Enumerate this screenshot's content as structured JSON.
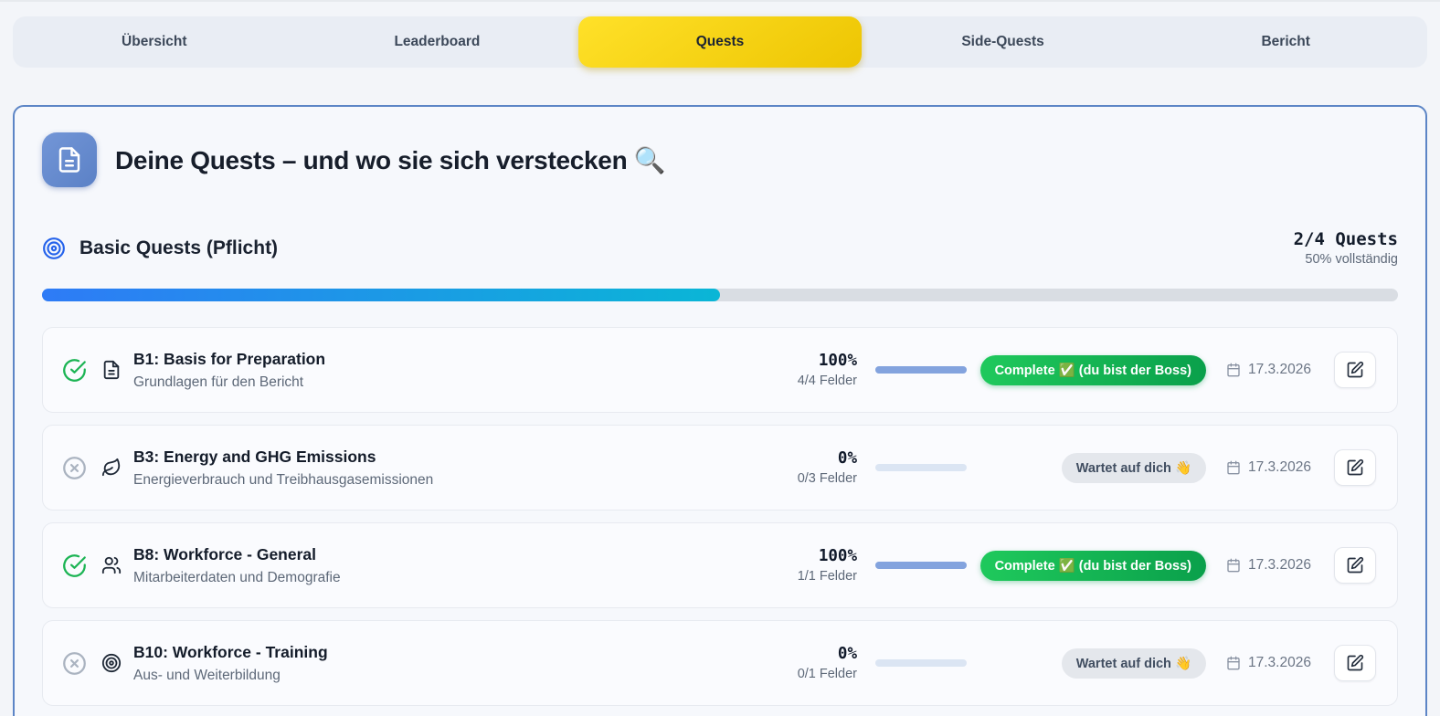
{
  "tabs": {
    "items": [
      {
        "label": "Übersicht",
        "active": false
      },
      {
        "label": "Leaderboard",
        "active": false
      },
      {
        "label": "Quests",
        "active": true
      },
      {
        "label": "Side-Quests",
        "active": false
      },
      {
        "label": "Bericht",
        "active": false
      }
    ]
  },
  "header": {
    "icon": "document-icon",
    "title": "Deine Quests – und wo sie sich verstecken 🔍"
  },
  "section": {
    "icon": "target-icon",
    "title": "Basic Quests (Pflicht)",
    "quest_count": "2/4 Quests",
    "percent_label": "50% vollständig",
    "progress_percent": 50
  },
  "quests": [
    {
      "title": "B1: Basis for Preparation",
      "subtitle": "Grundlagen für den Bericht",
      "percent": "100%",
      "fields": "4/4 Felder",
      "progress": 100,
      "status": "complete",
      "badge": "Complete ✅ (du bist der Boss)",
      "date": "17.3.2026",
      "type_icon": "document-icon"
    },
    {
      "title": "B3: Energy and GHG Emissions",
      "subtitle": "Energieverbrauch und Treibhausgasemissionen",
      "percent": "0%",
      "fields": "0/3 Felder",
      "progress": 0,
      "status": "waiting",
      "badge": "Wartet auf dich 👋",
      "date": "17.3.2026",
      "type_icon": "leaf-icon"
    },
    {
      "title": "B8: Workforce - General",
      "subtitle": "Mitarbeiterdaten und Demografie",
      "percent": "100%",
      "fields": "1/1 Felder",
      "progress": 100,
      "status": "complete",
      "badge": "Complete ✅ (du bist der Boss)",
      "date": "17.3.2026",
      "type_icon": "users-icon"
    },
    {
      "title": "B10: Workforce - Training",
      "subtitle": "Aus- und Weiterbildung",
      "percent": "0%",
      "fields": "0/1 Felder",
      "progress": 0,
      "status": "waiting",
      "badge": "Wartet auf dich 👋",
      "date": "17.3.2026",
      "type_icon": "target-icon"
    }
  ],
  "colors": {
    "active_tab_yellow": "#f5cf05",
    "card_border_blue": "#5c85c6",
    "progress_gradient_start": "#2e7bf6",
    "progress_gradient_end": "#0ab6d6",
    "complete_green": "#12b456",
    "mini_progress_blue": "#83a3de"
  }
}
